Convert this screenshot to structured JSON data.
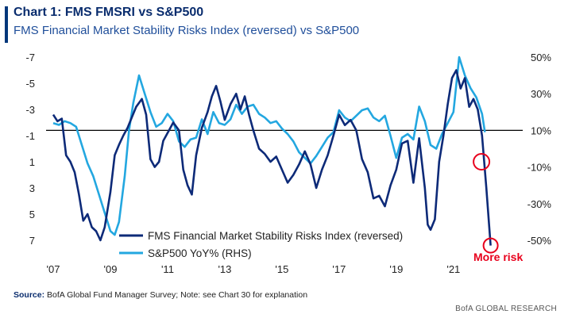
{
  "header": {
    "title": "Chart 1: FMS FMSRI vs S&P500",
    "subtitle": "FMS Financial Market Stability Risks Index (reversed) vs S&P500"
  },
  "footer": {
    "source_label": "Source:",
    "source_text": "BofA Global Fund Manager Survey; Note: see Chart 30 for explanation",
    "credit": "BofA GLOBAL RESEARCH"
  },
  "chart_data": {
    "type": "line",
    "left_axis": {
      "ticks": [
        -7,
        -5,
        -3,
        -1,
        1,
        3,
        5,
        7
      ],
      "min": -7,
      "max": 7,
      "reversed": true
    },
    "right_axis": {
      "ticks": [
        "50%",
        "30%",
        "10%",
        "-10%",
        "-30%",
        "-50%"
      ],
      "values": [
        50,
        30,
        10,
        -10,
        -30,
        -50
      ],
      "min": -50,
      "max": 50
    },
    "x_ticks": [
      "'07",
      "'09",
      "'11",
      "'13",
      "'15",
      "'17",
      "'19",
      "'21"
    ],
    "x_tick_years": [
      2007,
      2009,
      2011,
      2013,
      2015,
      2017,
      2019,
      2021
    ],
    "x_range": [
      2006.75,
      2022.7
    ],
    "grid": false,
    "legend_position": "bottom-center",
    "annotation": {
      "text": "More risk",
      "color": "#e8001c"
    },
    "series": [
      {
        "name": "FMS Financial Market Stability Risks Index (reversed)",
        "axis": "left",
        "color": "#0d2a78",
        "x": [
          2007.0,
          2007.15,
          2007.3,
          2007.45,
          2007.6,
          2007.75,
          2007.9,
          2008.05,
          2008.2,
          2008.35,
          2008.5,
          2008.65,
          2008.8,
          2009.0,
          2009.15,
          2009.3,
          2009.45,
          2009.6,
          2009.75,
          2009.9,
          2010.1,
          2010.25,
          2010.4,
          2010.55,
          2010.7,
          2010.85,
          2011.0,
          2011.2,
          2011.4,
          2011.55,
          2011.7,
          2011.85,
          2012.0,
          2012.2,
          2012.4,
          2012.55,
          2012.7,
          2012.85,
          2013.0,
          2013.2,
          2013.4,
          2013.55,
          2013.7,
          2013.85,
          2014.0,
          2014.2,
          2014.4,
          2014.6,
          2014.8,
          2015.0,
          2015.2,
          2015.4,
          2015.6,
          2015.8,
          2016.0,
          2016.2,
          2016.4,
          2016.6,
          2016.8,
          2017.0,
          2017.2,
          2017.4,
          2017.6,
          2017.8,
          2018.0,
          2018.2,
          2018.4,
          2018.6,
          2018.8,
          2019.0,
          2019.2,
          2019.4,
          2019.6,
          2019.8,
          2020.0,
          2020.1,
          2020.2,
          2020.35,
          2020.5,
          2020.65,
          2020.8,
          2020.95,
          2021.1,
          2021.25,
          2021.4,
          2021.55,
          2021.7,
          2021.85,
          2022.0,
          2022.15,
          2022.3
        ],
        "values": [
          -2.6,
          -2.1,
          -2.3,
          0.5,
          1.0,
          1.8,
          3.5,
          5.5,
          5.0,
          6.0,
          6.3,
          7.0,
          6.0,
          3.3,
          0.5,
          -0.3,
          -1.0,
          -1.6,
          -2.4,
          -3.2,
          -3.8,
          -2.6,
          0.8,
          1.4,
          1.0,
          -0.6,
          -1.2,
          -2.0,
          -1.4,
          1.6,
          2.8,
          3.5,
          0.5,
          -1.6,
          -2.8,
          -4.0,
          -4.8,
          -3.6,
          -2.2,
          -3.4,
          -4.2,
          -3.0,
          -4.0,
          -2.6,
          -1.4,
          0.0,
          0.4,
          1.0,
          0.6,
          1.6,
          2.6,
          2.0,
          1.2,
          0.2,
          1.2,
          3.0,
          1.6,
          0.5,
          -1.0,
          -2.6,
          -1.8,
          -2.2,
          -1.4,
          0.8,
          1.8,
          3.8,
          3.6,
          4.4,
          2.8,
          1.6,
          -0.4,
          -0.6,
          2.6,
          -0.8,
          3.0,
          5.8,
          6.2,
          5.4,
          1.0,
          -1.0,
          -3.4,
          -5.4,
          -6.0,
          -4.6,
          -5.4,
          -3.2,
          -3.8,
          -3.0,
          -1.0,
          3.0,
          7.4
        ]
      },
      {
        "name": "S&P500 YoY% (RHS)",
        "axis": "right",
        "color": "#23a7e0",
        "x": [
          2007.0,
          2007.2,
          2007.4,
          2007.6,
          2007.8,
          2008.0,
          2008.2,
          2008.4,
          2008.6,
          2008.8,
          2009.0,
          2009.15,
          2009.3,
          2009.5,
          2009.65,
          2009.8,
          2010.0,
          2010.2,
          2010.4,
          2010.6,
          2010.8,
          2011.0,
          2011.2,
          2011.4,
          2011.6,
          2011.8,
          2012.0,
          2012.2,
          2012.4,
          2012.6,
          2012.8,
          2013.0,
          2013.2,
          2013.4,
          2013.6,
          2013.8,
          2014.0,
          2014.2,
          2014.4,
          2014.6,
          2014.8,
          2015.0,
          2015.2,
          2015.4,
          2015.6,
          2015.8,
          2016.0,
          2016.2,
          2016.4,
          2016.6,
          2016.8,
          2017.0,
          2017.2,
          2017.4,
          2017.6,
          2017.8,
          2018.0,
          2018.2,
          2018.4,
          2018.6,
          2018.8,
          2019.0,
          2019.2,
          2019.4,
          2019.6,
          2019.8,
          2020.0,
          2020.2,
          2020.4,
          2020.6,
          2020.8,
          2021.0,
          2021.2,
          2021.4,
          2021.6,
          2021.8,
          2022.0,
          2022.1
        ],
        "values": [
          14,
          13,
          15,
          14,
          12,
          2,
          -8,
          -15,
          -25,
          -35,
          -45,
          -47,
          -40,
          -15,
          10,
          25,
          40,
          30,
          20,
          12,
          14,
          19,
          15,
          4,
          1,
          5,
          6,
          16,
          8,
          20,
          14,
          13,
          16,
          24,
          19,
          23,
          24,
          19,
          17,
          14,
          15,
          11,
          8,
          4,
          -2,
          -5,
          -8,
          -4,
          1,
          6,
          9,
          21,
          17,
          15,
          18,
          21,
          22,
          17,
          15,
          18,
          7,
          -5,
          6,
          8,
          5,
          23,
          15,
          2,
          0,
          8,
          14,
          20,
          50,
          40,
          33,
          28,
          19,
          9
        ]
      }
    ]
  }
}
